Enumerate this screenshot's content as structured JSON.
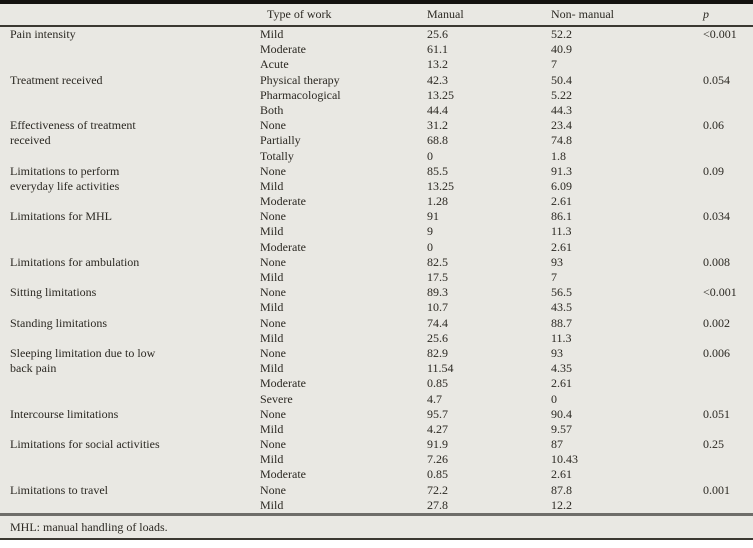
{
  "colors": {
    "bg": "#e9e8e3",
    "text": "#2b2822",
    "rule-dark": "#14120f",
    "rule-mid": "#3b3832",
    "rule-light": "#6e6d69",
    "page": "#ffffff"
  },
  "chart_data": {
    "type": "table",
    "columns": [
      "",
      "Type of work",
      "Manual",
      "Non- manual",
      "p"
    ],
    "groups": [
      {
        "label": "Pain intensity",
        "p": "<0.001",
        "rows": [
          [
            "Mild",
            "25.6",
            "52.2"
          ],
          [
            "Moderate",
            "61.1",
            "40.9"
          ],
          [
            "Acute",
            "13.2",
            "7"
          ]
        ]
      },
      {
        "label": "Treatment received",
        "p": "0.054",
        "rows": [
          [
            "Physical therapy",
            "42.3",
            "50.4"
          ],
          [
            "Pharmacological",
            "13.25",
            "5.22"
          ],
          [
            "Both",
            "44.4",
            "44.3"
          ]
        ]
      },
      {
        "label": "Effectiveness of treatment\nreceived",
        "p": "0.06",
        "rows": [
          [
            "None",
            "31.2",
            "23.4"
          ],
          [
            "Partially",
            "68.8",
            "74.8"
          ],
          [
            "Totally",
            "0",
            "1.8"
          ]
        ]
      },
      {
        "label": "Limitations to perform\neveryday life activities",
        "p": "0.09",
        "rows": [
          [
            "None",
            "85.5",
            "91.3"
          ],
          [
            "Mild",
            "13.25",
            "6.09"
          ],
          [
            "Moderate",
            "1.28",
            "2.61"
          ]
        ]
      },
      {
        "label": "Limitations for MHL",
        "p": "0.034",
        "rows": [
          [
            "None",
            "91",
            "86.1"
          ],
          [
            "Mild",
            "9",
            "11.3"
          ],
          [
            "Moderate",
            "0",
            "2.61"
          ]
        ]
      },
      {
        "label": "Limitations for ambulation",
        "p": "0.008",
        "rows": [
          [
            "None",
            "82.5",
            "93"
          ],
          [
            "Mild",
            "17.5",
            "7"
          ]
        ]
      },
      {
        "label": "Sitting limitations",
        "p": "<0.001",
        "rows": [
          [
            "None",
            "89.3",
            "56.5"
          ],
          [
            "Mild",
            "10.7",
            "43.5"
          ]
        ]
      },
      {
        "label": "Standing limitations",
        "p": "0.002",
        "rows": [
          [
            "None",
            "74.4",
            "88.7"
          ],
          [
            "Mild",
            "25.6",
            "11.3"
          ]
        ]
      },
      {
        "label": "Sleeping limitation due to low\nback pain",
        "p": "0.006",
        "rows": [
          [
            "None",
            "82.9",
            "93"
          ],
          [
            "Mild",
            "11.54",
            "4.35"
          ],
          [
            "Moderate",
            "0.85",
            "2.61"
          ],
          [
            "Severe",
            "4.7",
            "0"
          ]
        ]
      },
      {
        "label": "Intercourse limitations",
        "p": "0.051",
        "rows": [
          [
            "None",
            "95.7",
            "90.4"
          ],
          [
            "Mild",
            "4.27",
            "9.57"
          ]
        ]
      },
      {
        "label": "Limitations for social activities",
        "p": "0.25",
        "rows": [
          [
            "None",
            "91.9",
            "87"
          ],
          [
            "Mild",
            "7.26",
            "10.43"
          ],
          [
            "Moderate",
            "0.85",
            "2.61"
          ]
        ]
      },
      {
        "label": "Limitations to travel",
        "p": "0.001",
        "rows": [
          [
            "None",
            "72.2",
            "87.8"
          ],
          [
            "Mild",
            "27.8",
            "12.2"
          ]
        ]
      }
    ],
    "footnote": "MHL: manual handling of loads."
  }
}
